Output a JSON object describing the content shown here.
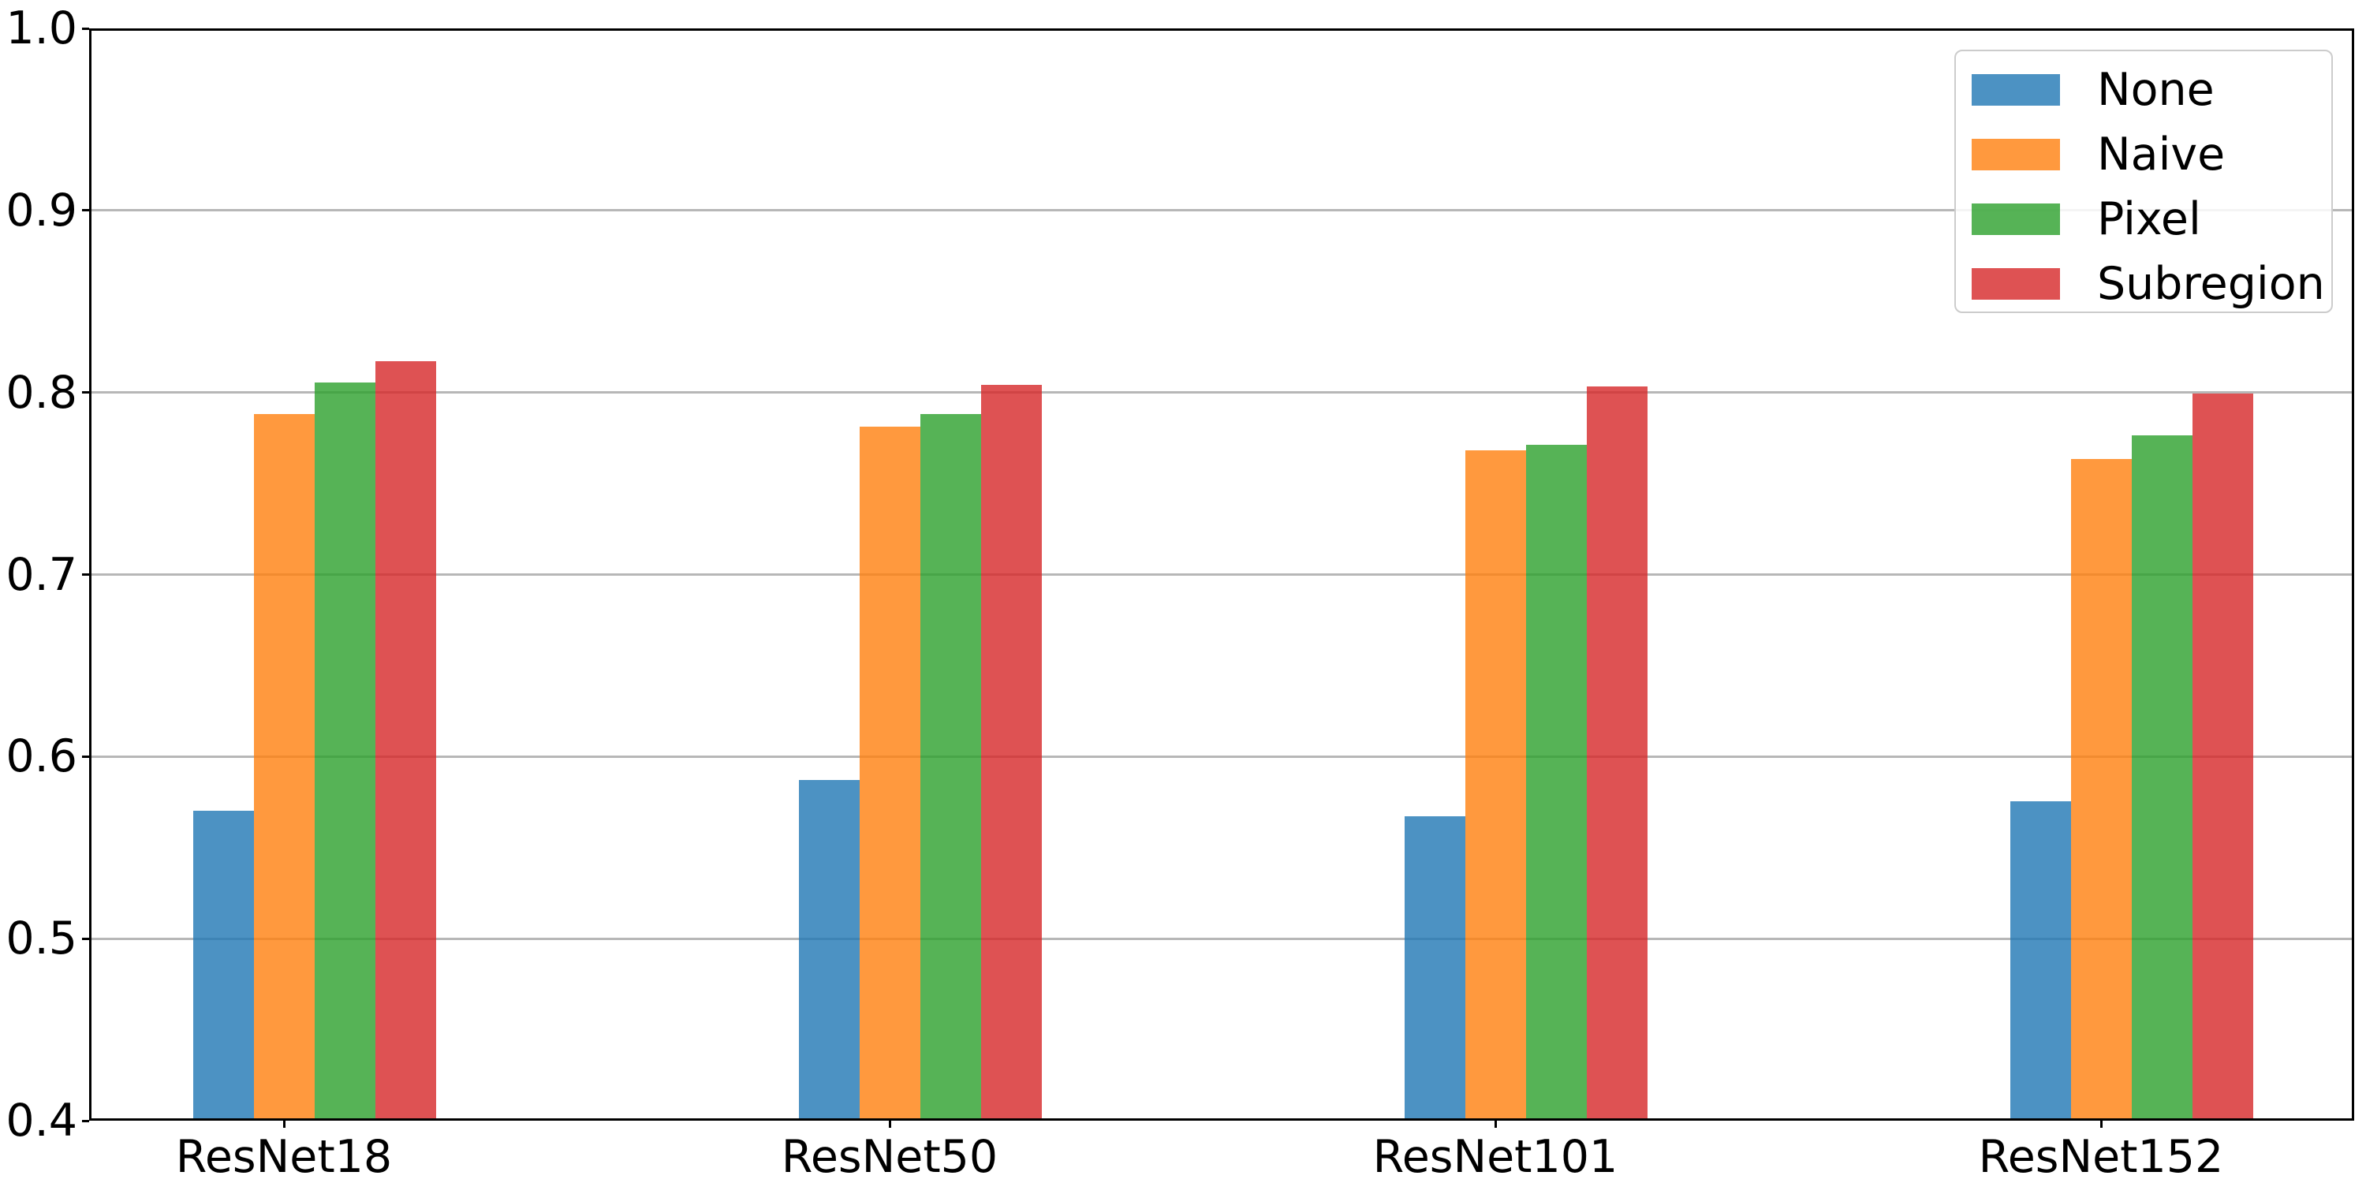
{
  "chart_data": {
    "type": "bar",
    "title": "",
    "xlabel": "",
    "ylabel": "",
    "categories": [
      "ResNet18",
      "ResNet50",
      "ResNet101",
      "ResNet152"
    ],
    "series": [
      {
        "name": "None",
        "color_hex": "#1f77b4",
        "color_rgba": "rgba(31,119,180,0.8)",
        "values": [
          0.569,
          0.586,
          0.566,
          0.574
        ]
      },
      {
        "name": "Naive",
        "color_hex": "#ff7f0e",
        "color_rgba": "rgba(255,127,14,0.8)",
        "values": [
          0.787,
          0.78,
          0.767,
          0.762
        ]
      },
      {
        "name": "Pixel",
        "color_hex": "#2ca02c",
        "color_rgba": "rgba(44,160,44,0.8)",
        "values": [
          0.804,
          0.787,
          0.77,
          0.775
        ]
      },
      {
        "name": "Subregion",
        "color_hex": "#d62728",
        "color_rgba": "rgba(214,39,40,0.8)",
        "values": [
          0.816,
          0.803,
          0.802,
          0.798
        ]
      }
    ],
    "ylim": [
      0.4,
      1.0
    ],
    "yticks": [
      1.0,
      0.9,
      0.8,
      0.7,
      0.6,
      0.5,
      0.4
    ],
    "grid": true,
    "grid_color": "#b7b7b7",
    "axis_color": "#000000",
    "background_color": "#ffffff",
    "legend": {
      "position": "upper-right",
      "entries": [
        "None",
        "Naive",
        "Pixel",
        "Subregion"
      ]
    }
  }
}
